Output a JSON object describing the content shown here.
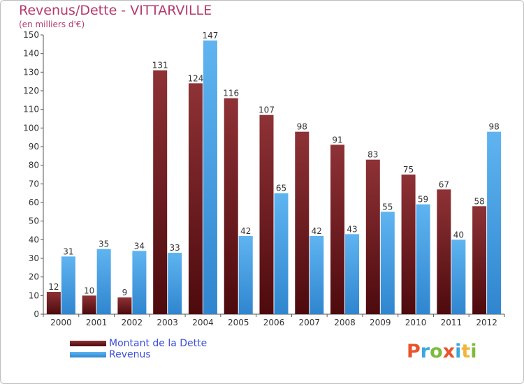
{
  "header": {
    "title": "Revenus/Dette - VITTARVILLE",
    "unit": "(en milliers d'€)"
  },
  "legend": {
    "items": [
      {
        "label": "Montant de la Dette",
        "color": "#7a1c1f"
      },
      {
        "label": "Revenus",
        "color": "#4aa3e8"
      }
    ]
  },
  "brand": {
    "text": "Proxiti",
    "colors": [
      "#e8542b",
      "#3aa7dd",
      "#7dbb3c",
      "#e8542b",
      "#3aa7dd",
      "#f2b53b",
      "#7dbb3c"
    ]
  },
  "chart_data": {
    "type": "bar",
    "title": "Revenus/Dette - VITTARVILLE",
    "subtitle": "(en milliers d'€)",
    "categories": [
      "2000",
      "2001",
      "2002",
      "2003",
      "2004",
      "2005",
      "2006",
      "2007",
      "2008",
      "2009",
      "2010",
      "2011",
      "2012"
    ],
    "series": [
      {
        "name": "Montant de la Dette",
        "color": "#7a1c1f",
        "values": [
          12,
          10,
          9,
          131,
          124,
          116,
          107,
          98,
          91,
          83,
          75,
          67,
          58
        ]
      },
      {
        "name": "Revenus",
        "color": "#4aa3e8",
        "values": [
          31,
          35,
          34,
          33,
          147,
          42,
          65,
          42,
          43,
          55,
          59,
          40,
          98
        ]
      }
    ],
    "ylim": [
      0,
      150
    ],
    "yticks": [
      0,
      10,
      20,
      30,
      40,
      50,
      60,
      70,
      80,
      90,
      100,
      110,
      120,
      130,
      140,
      150
    ],
    "grid": false,
    "legend_position": "bottom-left",
    "data_labels": true
  }
}
